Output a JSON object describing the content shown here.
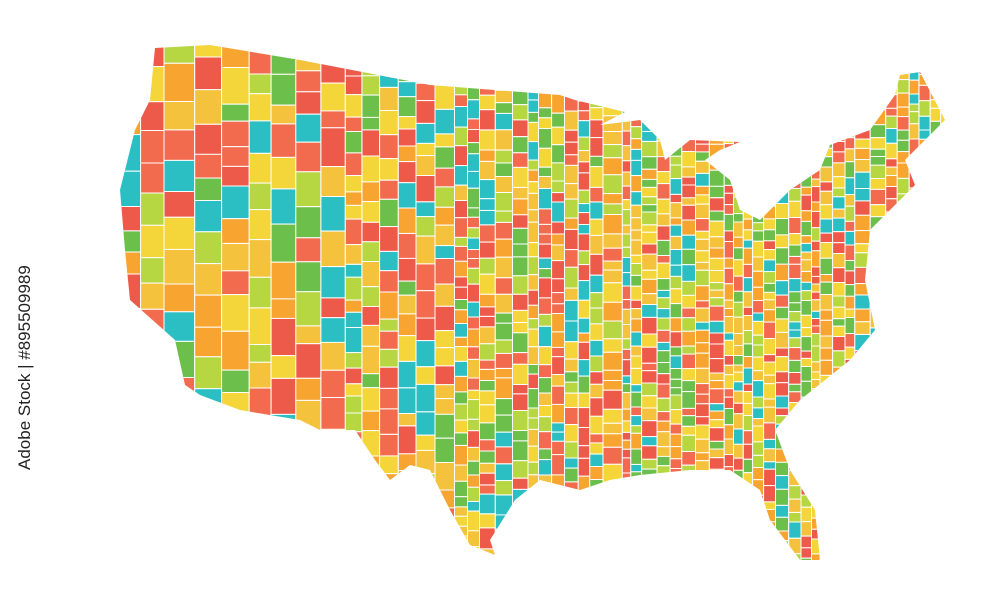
{
  "watermark": "Adobe Stock | #895509989"
}
